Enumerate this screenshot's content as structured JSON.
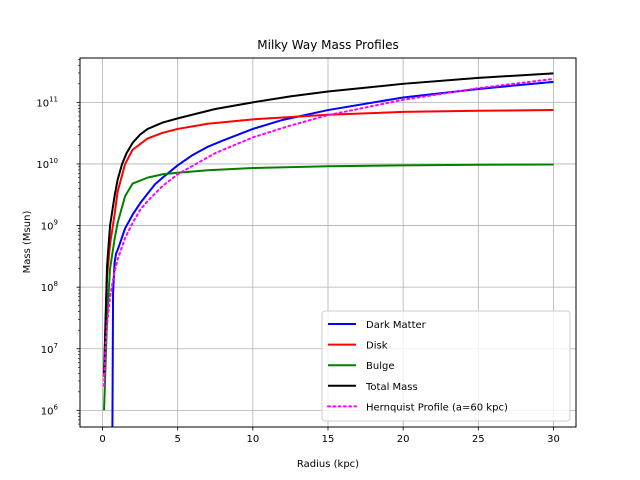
{
  "chart_data": {
    "type": "line",
    "title": "Milky Way Mass Profiles",
    "xlabel": "Radius (kpc)",
    "ylabel": "Mass (Msun)",
    "xlim": [
      -1.5,
      31.5
    ],
    "ylim_log10": [
      5.73,
      11.72
    ],
    "yscale": "log",
    "grid": true,
    "legend_position": "lower-right",
    "x_ticks": [
      0,
      5,
      10,
      15,
      20,
      25,
      30
    ],
    "x_tick_labels": [
      "0",
      "5",
      "10",
      "15",
      "20",
      "25",
      "30"
    ],
    "y_tick_exponents": [
      6,
      7,
      8,
      9,
      10,
      11
    ],
    "y_tick_base": "10",
    "series": [
      {
        "name": "Dark Matter",
        "color": "#0000ff",
        "style": "solid",
        "x": [
          0.65,
          0.66,
          0.7,
          0.8,
          0.9,
          1.0,
          1.2,
          1.5,
          2.0,
          2.5,
          3.0,
          3.5,
          4.0,
          5.0,
          6.0,
          7.0,
          8.0,
          10.0,
          12.0,
          15.0,
          20.0,
          25.0,
          30.0
        ],
        "y": [
          300000,
          800000,
          80000000,
          250000000,
          350000000,
          400000000,
          550000000,
          900000000,
          1500000000,
          2300000000,
          3300000000,
          4700000000,
          6000000000,
          9500000000,
          14000000000,
          19000000000,
          24000000000,
          37000000000,
          52000000000,
          75000000000,
          120000000000,
          165000000000,
          215000000000
        ]
      },
      {
        "name": "Disk",
        "color": "#ff0000",
        "style": "solid",
        "x": [
          0.1,
          0.3,
          0.5,
          0.8,
          1.0,
          1.5,
          2.0,
          3.0,
          4.0,
          5.0,
          7.0,
          10.0,
          15.0,
          20.0,
          25.0,
          30.0
        ],
        "y": [
          3500000,
          150000000,
          500000000,
          1500000000,
          3500000000,
          10000000000,
          17000000000,
          26000000000,
          32000000000,
          37000000000,
          45000000000,
          53000000000,
          63000000000,
          70000000000,
          73000000000,
          75000000000
        ]
      },
      {
        "name": "Bulge",
        "color": "#008000",
        "style": "solid",
        "x": [
          0.1,
          0.3,
          0.5,
          0.8,
          1.0,
          1.5,
          2.0,
          3.0,
          4.0,
          5.0,
          7.0,
          10.0,
          15.0,
          20.0,
          25.0,
          30.0
        ],
        "y": [
          1000000,
          30000000,
          200000000,
          600000000,
          1100000000,
          3000000000,
          4800000000,
          6000000000,
          6800000000,
          7200000000,
          7900000000,
          8600000000,
          9200000000,
          9500000000,
          9700000000,
          9800000000
        ]
      },
      {
        "name": "Total Mass",
        "color": "#000000",
        "style": "solid",
        "x": [
          0.1,
          0.3,
          0.5,
          0.8,
          1.0,
          1.3,
          1.6,
          2.0,
          2.5,
          3.0,
          4.0,
          5.0,
          7.5,
          10.0,
          12.5,
          15.0,
          20.0,
          25.0,
          30.0
        ],
        "y": [
          4000000,
          220000000,
          1000000000,
          3000000000,
          5500000000,
          10000000000,
          15000000000,
          22000000000,
          30000000000,
          37000000000,
          47000000000,
          55000000000,
          78000000000,
          100000000000,
          125000000000,
          150000000000,
          200000000000,
          250000000000,
          295000000000
        ]
      },
      {
        "name": "Hernquist Profile (a=60 kpc)",
        "color": "#ff00ff",
        "style": "dotted",
        "x": [
          0.1,
          0.2,
          0.3,
          0.5,
          0.8,
          1.0,
          1.5,
          2.0,
          2.5,
          3.0,
          4.0,
          5.0,
          7.5,
          10.0,
          12.5,
          15.0,
          20.0,
          25.0,
          30.0
        ],
        "y": [
          2500000,
          11000000,
          25000000,
          70000000,
          180000000,
          280000000,
          630000000,
          1100000000,
          1800000000,
          2500000000,
          4400000000,
          6800000000,
          15000000000,
          27000000000,
          42000000000,
          62000000000,
          110000000000,
          170000000000,
          240000000000
        ]
      }
    ]
  }
}
